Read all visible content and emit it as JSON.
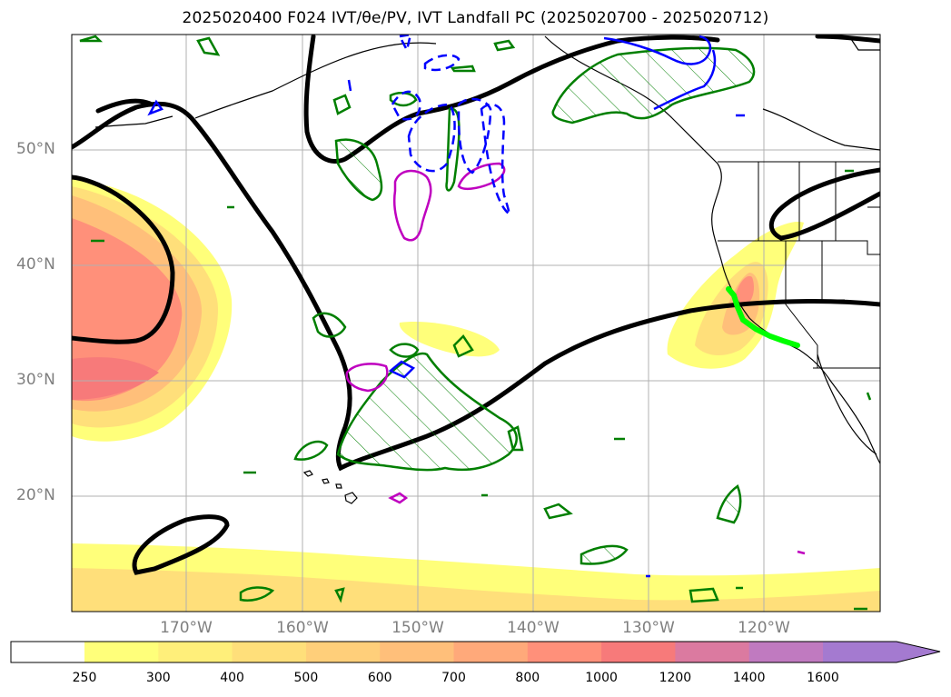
{
  "title": "2025020400 F024 IVT/θe/PV, IVT Landfall PC (2025020700 - 2025020712)",
  "latitude_labels": [
    "50°N",
    "40°N",
    "30°N",
    "20°N"
  ],
  "longitude_labels": [
    "170°W",
    "160°W",
    "150°W",
    "140°W",
    "130°W",
    "120°W"
  ],
  "colorbar": {
    "levels": [
      "250",
      "300",
      "400",
      "500",
      "600",
      "700",
      "800",
      "1000",
      "1200",
      "1400",
      "1600"
    ],
    "colors": [
      "#ffff7a",
      "#ffef7a",
      "#ffdf7a",
      "#ffcf7a",
      "#ffbf7a",
      "#ffa97a",
      "#ff907a",
      "#f77a7a",
      "#db7aa0",
      "#c07ac0",
      "#a47ad0"
    ],
    "extend": "max"
  },
  "layer_colors": {
    "land_coast": "#000000",
    "thick_contour": "#000000",
    "green_contour": "#007f00",
    "magenta_contour": "#bf00bf",
    "blue_contour": "#0000ff",
    "landfall_line": "#00ff00"
  }
}
